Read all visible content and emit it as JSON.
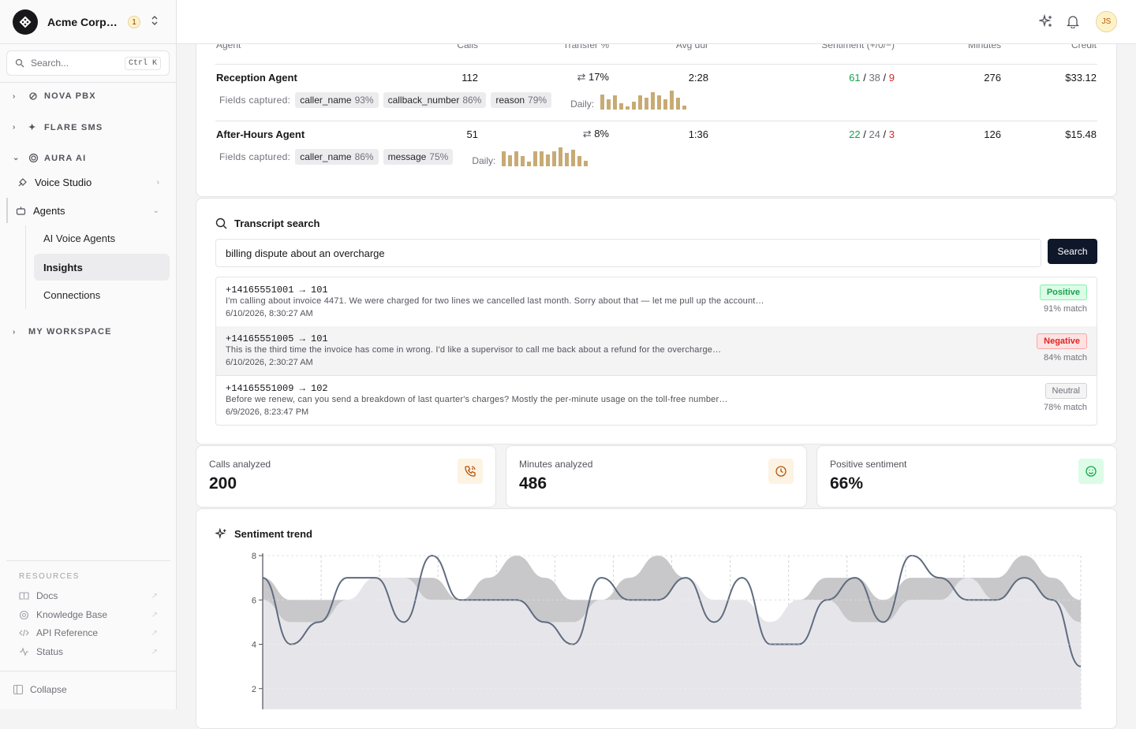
{
  "org": {
    "name": "Acme Corporation",
    "count": "1"
  },
  "search": {
    "placeholder": "Search...",
    "shortcut": "Ctrl K"
  },
  "sidebar": {
    "groups": [
      "NOVA PBX",
      "FLARE SMS",
      "AURA AI",
      "MY WORKSPACE"
    ],
    "items": {
      "voice_studio": "Voice Studio",
      "agents": "Agents"
    },
    "sub_items": [
      "AI Voice Agents",
      "Insights",
      "Connections"
    ],
    "resources_title": "RESOURCES",
    "resources": [
      "Docs",
      "Knowledge Base",
      "API Reference",
      "Status"
    ],
    "collapse": "Collapse"
  },
  "user": {
    "initials": "JS"
  },
  "agents_table": {
    "headers": {
      "agent": "Agent",
      "calls": "Calls",
      "transfer": "Transfer %",
      "avg_dur": "Avg dur",
      "sentiment": "Sentiment (+/0/−)",
      "minutes": "Minutes",
      "credit": "Credit"
    },
    "fields_label": "Fields captured:",
    "daily_label": "Daily:",
    "rows": [
      {
        "agent": "Reception Agent",
        "calls": "112",
        "transfer": "17%",
        "avg_dur": "2:28",
        "sent_pos": "61",
        "sent_neu": "38",
        "sent_neg": "9",
        "minutes": "276",
        "credit": "$33.12",
        "fields": [
          {
            "name": "caller_name",
            "pct": "93%"
          },
          {
            "name": "callback_number",
            "pct": "86%"
          },
          {
            "name": "reason",
            "pct": "79%"
          }
        ],
        "daily": [
          18,
          12,
          17,
          8,
          4,
          10,
          17,
          14,
          21,
          17,
          12,
          23,
          14,
          5
        ]
      },
      {
        "agent": "After-Hours Agent",
        "calls": "51",
        "transfer": "8%",
        "avg_dur": "1:36",
        "sent_pos": "22",
        "sent_neu": "24",
        "sent_neg": "3",
        "minutes": "126",
        "credit": "$15.48",
        "fields": [
          {
            "name": "caller_name",
            "pct": "86%"
          },
          {
            "name": "message",
            "pct": "75%"
          }
        ],
        "daily": [
          18,
          13,
          18,
          12,
          6,
          18,
          18,
          14,
          18,
          23,
          16,
          20,
          12,
          7
        ]
      }
    ]
  },
  "transcript_search": {
    "title": "Transcript search",
    "query": "billing dispute about an overcharge",
    "button": "Search",
    "results": [
      {
        "route": "+14165551001 → 101",
        "snippet": "I'm calling about invoice 4471. We were charged for two lines we cancelled last month. Sorry about that — let me pull up the account…",
        "timestamp": "6/10/2026, 8:30:27 AM",
        "sentiment": "Positive",
        "match": "91% match"
      },
      {
        "route": "+14165551005 → 101",
        "snippet": "This is the third time the invoice has come in wrong. I'd like a supervisor to call me back about a refund for the overcharge…",
        "timestamp": "6/10/2026, 2:30:27 AM",
        "sentiment": "Negative",
        "match": "84% match"
      },
      {
        "route": "+14165551009 → 102",
        "snippet": "Before we renew, can you send a breakdown of last quarter's charges? Mostly the per-minute usage on the toll-free number…",
        "timestamp": "6/9/2026, 8:23:47 PM",
        "sentiment": "Neutral",
        "match": "78% match"
      }
    ]
  },
  "stats": [
    {
      "label": "Calls analyzed",
      "value": "200",
      "icon": "phone-icon"
    },
    {
      "label": "Minutes analyzed",
      "value": "486",
      "icon": "clock-icon"
    },
    {
      "label": "Positive sentiment",
      "value": "66%",
      "icon": "smile-icon"
    }
  ],
  "chart_data": {
    "type": "area",
    "title": "Sentiment trend",
    "y_ticks": [
      2,
      4,
      6,
      8
    ],
    "ylim": [
      0,
      8
    ],
    "grid": true,
    "x": [
      0,
      1,
      2,
      3,
      4,
      5,
      6,
      7,
      8,
      9,
      10,
      11,
      12,
      13,
      14,
      15,
      16,
      17,
      18,
      19,
      20,
      21,
      22,
      23,
      24,
      25,
      26,
      27,
      28,
      29
    ],
    "series": [
      {
        "values": [
          7,
          6,
          6,
          6,
          7,
          7,
          7,
          6,
          7,
          8,
          7,
          6,
          6,
          7,
          8,
          7,
          6,
          5,
          5,
          6,
          7,
          7,
          6,
          7,
          7,
          7,
          7,
          8,
          7,
          6
        ],
        "color": "#c8c8cb"
      },
      {
        "values": [
          6,
          5,
          5,
          6,
          7,
          7,
          6,
          6,
          6,
          6,
          5,
          5,
          6,
          6,
          6,
          7,
          6,
          6,
          5,
          6,
          6,
          5,
          5,
          6,
          6,
          7,
          6,
          7,
          6,
          5
        ],
        "color": "#e6e6ea"
      },
      {
        "values": [
          7,
          4,
          5,
          7,
          7,
          5,
          8,
          6,
          6,
          6,
          5,
          4,
          7,
          6,
          6,
          7,
          5,
          7,
          4,
          4,
          6,
          7,
          5,
          8,
          7,
          6,
          6,
          7,
          6,
          3
        ],
        "color": "#5f6b7f"
      }
    ]
  }
}
